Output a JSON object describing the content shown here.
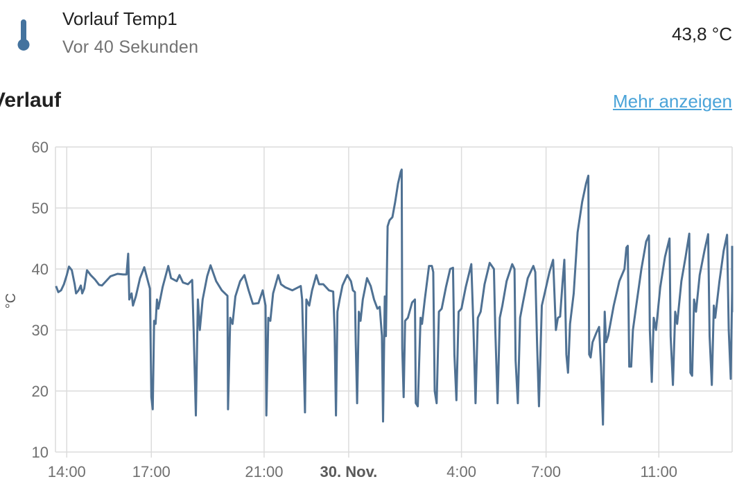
{
  "entity": {
    "name": "Vorlauf Temp1",
    "last_changed": "Vor 40 Sekunden",
    "state": "43,8 °C",
    "icon": "thermometer-icon",
    "icon_color": "#44739e"
  },
  "history": {
    "title": "Verlauf",
    "more_link": "Mehr anzeigen"
  },
  "chart_data": {
    "type": "line",
    "ylabel": "°C",
    "ylim": [
      10,
      60
    ],
    "y_ticks": [
      60,
      50,
      40,
      30,
      20,
      10
    ],
    "x_tick_labels": [
      "14:00",
      "17:00",
      "21:00",
      "30. Nov.",
      "4:00",
      "7:00",
      "11:00"
    ],
    "x_tick_hours": [
      14,
      17,
      21,
      24,
      28,
      31,
      35
    ],
    "x_range_hours": [
      13.6,
      37.6
    ],
    "grid": true,
    "line_color": "#4f7193",
    "series": [
      {
        "name": "",
        "points": [
          [
            13.62,
            37.2
          ],
          [
            13.7,
            36.2
          ],
          [
            13.8,
            36.5
          ],
          [
            13.9,
            37.5
          ],
          [
            14.0,
            39.0
          ],
          [
            14.08,
            40.4
          ],
          [
            14.18,
            39.8
          ],
          [
            14.28,
            37.5
          ],
          [
            14.33,
            36.0
          ],
          [
            14.42,
            36.5
          ],
          [
            14.5,
            37.3
          ],
          [
            14.55,
            36.0
          ],
          [
            14.62,
            36.8
          ],
          [
            14.72,
            39.8
          ],
          [
            14.85,
            39.0
          ],
          [
            15.0,
            38.3
          ],
          [
            15.15,
            37.4
          ],
          [
            15.25,
            37.3
          ],
          [
            15.35,
            37.8
          ],
          [
            15.55,
            38.8
          ],
          [
            15.8,
            39.2
          ],
          [
            16.0,
            39.1
          ],
          [
            16.12,
            39.1
          ],
          [
            16.18,
            42.5
          ],
          [
            16.22,
            35.0
          ],
          [
            16.3,
            36.0
          ],
          [
            16.35,
            34.0
          ],
          [
            16.45,
            35.5
          ],
          [
            16.6,
            38.5
          ],
          [
            16.75,
            40.3
          ],
          [
            16.85,
            38.5
          ],
          [
            16.95,
            36.8
          ],
          [
            17.0,
            19.0
          ],
          [
            17.05,
            17.0
          ],
          [
            17.1,
            31.5
          ],
          [
            17.15,
            31.0
          ],
          [
            17.2,
            35.0
          ],
          [
            17.25,
            33.5
          ],
          [
            17.4,
            37.0
          ],
          [
            17.6,
            40.5
          ],
          [
            17.7,
            38.5
          ],
          [
            17.9,
            38.0
          ],
          [
            18.0,
            39.0
          ],
          [
            18.12,
            37.8
          ],
          [
            18.3,
            37.5
          ],
          [
            18.45,
            38.2
          ],
          [
            18.5,
            30.0
          ],
          [
            18.58,
            16.0
          ],
          [
            18.65,
            35.0
          ],
          [
            18.72,
            30.0
          ],
          [
            18.82,
            35.0
          ],
          [
            18.98,
            38.8
          ],
          [
            19.1,
            40.6
          ],
          [
            19.3,
            38.0
          ],
          [
            19.5,
            36.5
          ],
          [
            19.7,
            35.6
          ],
          [
            19.72,
            17.0
          ],
          [
            19.8,
            32.0
          ],
          [
            19.88,
            31.0
          ],
          [
            19.98,
            35.5
          ],
          [
            20.15,
            38.0
          ],
          [
            20.3,
            39.0
          ],
          [
            20.45,
            36.5
          ],
          [
            20.6,
            34.3
          ],
          [
            20.8,
            34.4
          ],
          [
            20.95,
            36.5
          ],
          [
            21.05,
            34.0
          ],
          [
            21.08,
            16.0
          ],
          [
            21.15,
            32.0
          ],
          [
            21.22,
            31.5
          ],
          [
            21.32,
            36.0
          ],
          [
            21.5,
            39.0
          ],
          [
            21.6,
            37.5
          ],
          [
            21.75,
            37.0
          ],
          [
            22.0,
            36.5
          ],
          [
            22.3,
            37.2
          ],
          [
            22.35,
            35.0
          ],
          [
            22.45,
            16.5
          ],
          [
            22.5,
            35.0
          ],
          [
            22.6,
            34.0
          ],
          [
            22.7,
            36.5
          ],
          [
            22.85,
            39.0
          ],
          [
            22.95,
            37.5
          ],
          [
            23.1,
            37.5
          ],
          [
            23.3,
            36.5
          ],
          [
            23.45,
            36.3
          ],
          [
            23.5,
            30.0
          ],
          [
            23.55,
            16.0
          ],
          [
            23.6,
            33.0
          ],
          [
            23.68,
            35.0
          ],
          [
            23.78,
            37.3
          ],
          [
            23.95,
            39.0
          ],
          [
            24.08,
            38.0
          ],
          [
            24.15,
            36.5
          ],
          [
            24.22,
            36.2
          ],
          [
            24.25,
            28.0
          ],
          [
            24.3,
            18.0
          ],
          [
            24.36,
            33.0
          ],
          [
            24.42,
            31.5
          ],
          [
            24.5,
            35.0
          ],
          [
            24.65,
            38.5
          ],
          [
            24.78,
            37.2
          ],
          [
            24.9,
            35.0
          ],
          [
            25.02,
            33.5
          ],
          [
            25.1,
            33.8
          ],
          [
            25.18,
            29.0
          ],
          [
            25.22,
            15.0
          ],
          [
            25.28,
            35.5
          ],
          [
            25.32,
            29.0
          ],
          [
            25.38,
            47.0
          ],
          [
            25.45,
            48.0
          ],
          [
            25.55,
            48.5
          ],
          [
            25.65,
            51.0
          ],
          [
            25.75,
            54.0
          ],
          [
            25.85,
            56.0
          ],
          [
            25.88,
            56.3
          ],
          [
            25.9,
            27.0
          ],
          [
            25.95,
            19.0
          ],
          [
            26.0,
            31.5
          ],
          [
            26.1,
            32.0
          ],
          [
            26.25,
            34.5
          ],
          [
            26.35,
            35.0
          ],
          [
            26.38,
            18.0
          ],
          [
            26.45,
            17.5
          ],
          [
            26.55,
            32.0
          ],
          [
            26.6,
            31.0
          ],
          [
            26.7,
            35.0
          ],
          [
            26.85,
            40.5
          ],
          [
            26.95,
            40.5
          ],
          [
            27.0,
            39.5
          ],
          [
            27.05,
            20.0
          ],
          [
            27.12,
            18.0
          ],
          [
            27.2,
            33.0
          ],
          [
            27.3,
            33.5
          ],
          [
            27.45,
            37.0
          ],
          [
            27.6,
            40.0
          ],
          [
            27.7,
            40.2
          ],
          [
            27.75,
            26.0
          ],
          [
            27.82,
            18.5
          ],
          [
            27.9,
            33.0
          ],
          [
            28.0,
            33.5
          ],
          [
            28.15,
            37.0
          ],
          [
            28.35,
            40.8
          ],
          [
            28.42,
            31.0
          ],
          [
            28.5,
            18.0
          ],
          [
            28.58,
            32.0
          ],
          [
            28.68,
            33.0
          ],
          [
            28.82,
            37.5
          ],
          [
            29.0,
            41.0
          ],
          [
            29.15,
            40.0
          ],
          [
            29.2,
            30.0
          ],
          [
            29.28,
            18.0
          ],
          [
            29.36,
            32.0
          ],
          [
            29.45,
            34.0
          ],
          [
            29.6,
            38.0
          ],
          [
            29.8,
            40.8
          ],
          [
            29.88,
            40.0
          ],
          [
            29.92,
            25.0
          ],
          [
            30.0,
            18.0
          ],
          [
            30.08,
            32.0
          ],
          [
            30.18,
            34.5
          ],
          [
            30.35,
            38.5
          ],
          [
            30.55,
            40.5
          ],
          [
            30.62,
            39.5
          ],
          [
            30.68,
            28.0
          ],
          [
            30.75,
            17.5
          ],
          [
            30.85,
            34.0
          ],
          [
            30.95,
            36.0
          ],
          [
            31.12,
            39.5
          ],
          [
            31.25,
            41.5
          ],
          [
            31.35,
            30.0
          ],
          [
            31.42,
            32.0
          ],
          [
            31.5,
            32.2
          ],
          [
            31.58,
            37.5
          ],
          [
            31.65,
            41.5
          ],
          [
            31.72,
            26.0
          ],
          [
            31.78,
            23.0
          ],
          [
            31.85,
            31.0
          ],
          [
            31.98,
            36.0
          ],
          [
            32.12,
            46.0
          ],
          [
            32.28,
            51.0
          ],
          [
            32.42,
            54.0
          ],
          [
            32.5,
            55.3
          ],
          [
            32.53,
            26.0
          ],
          [
            32.58,
            25.5
          ],
          [
            32.65,
            28.0
          ],
          [
            32.78,
            29.5
          ],
          [
            32.88,
            30.5
          ],
          [
            32.95,
            24.0
          ],
          [
            33.02,
            14.5
          ],
          [
            33.08,
            33.0
          ],
          [
            33.13,
            28.0
          ],
          [
            33.2,
            29.0
          ],
          [
            33.4,
            34.0
          ],
          [
            33.6,
            38.0
          ],
          [
            33.78,
            40.0
          ],
          [
            33.85,
            43.5
          ],
          [
            33.9,
            43.8
          ],
          [
            33.95,
            24.0
          ],
          [
            34.02,
            24.0
          ],
          [
            34.08,
            30.0
          ],
          [
            34.2,
            34.0
          ],
          [
            34.38,
            40.0
          ],
          [
            34.55,
            44.5
          ],
          [
            34.65,
            45.5
          ],
          [
            34.68,
            30.0
          ],
          [
            34.75,
            21.5
          ],
          [
            34.82,
            32.0
          ],
          [
            34.9,
            30.0
          ],
          [
            35.05,
            37.0
          ],
          [
            35.22,
            42.0
          ],
          [
            35.38,
            45.0
          ],
          [
            35.42,
            29.0
          ],
          [
            35.5,
            21.0
          ],
          [
            35.58,
            33.0
          ],
          [
            35.65,
            31.0
          ],
          [
            35.8,
            38.0
          ],
          [
            35.95,
            42.0
          ],
          [
            36.08,
            45.8
          ],
          [
            36.12,
            23.0
          ],
          [
            36.18,
            22.5
          ],
          [
            36.25,
            35.0
          ],
          [
            36.32,
            33.0
          ],
          [
            36.45,
            39.0
          ],
          [
            36.62,
            43.0
          ],
          [
            36.75,
            45.7
          ],
          [
            36.8,
            29.0
          ],
          [
            36.88,
            21.0
          ],
          [
            36.95,
            34.0
          ],
          [
            37.0,
            32.0
          ],
          [
            37.15,
            38.0
          ],
          [
            37.3,
            43.0
          ],
          [
            37.42,
            45.6
          ],
          [
            37.48,
            30.0
          ],
          [
            37.55,
            22.0
          ],
          [
            37.6,
            36.5
          ],
          [
            37.68,
            33.0
          ],
          [
            37.8,
            37.0
          ],
          [
            37.95,
            41.0
          ],
          [
            38.08,
            43.8
          ]
        ]
      }
    ]
  }
}
